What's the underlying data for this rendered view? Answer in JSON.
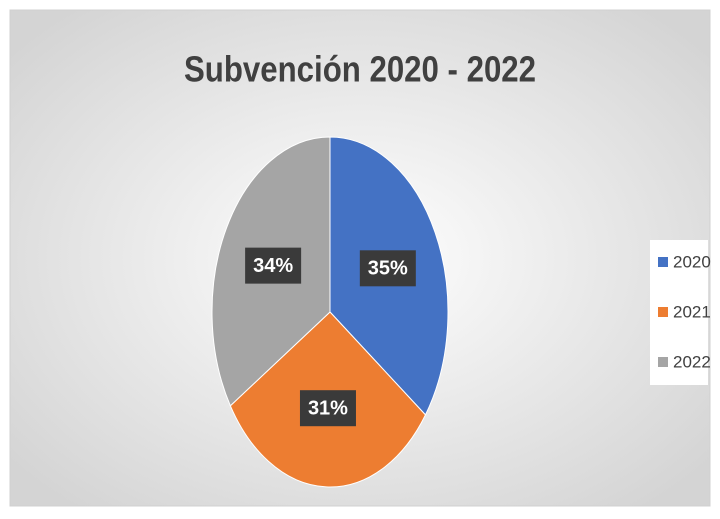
{
  "chart_data": {
    "type": "pie",
    "title": "Subvención 2020 - 2022",
    "categories": [
      "2020",
      "2021",
      "2022"
    ],
    "values": [
      35,
      31,
      34
    ],
    "value_labels": [
      "35%",
      "31%",
      "34%"
    ],
    "colors": [
      "#4472c4",
      "#ed7d31",
      "#a5a5a5"
    ],
    "legend": "right"
  }
}
